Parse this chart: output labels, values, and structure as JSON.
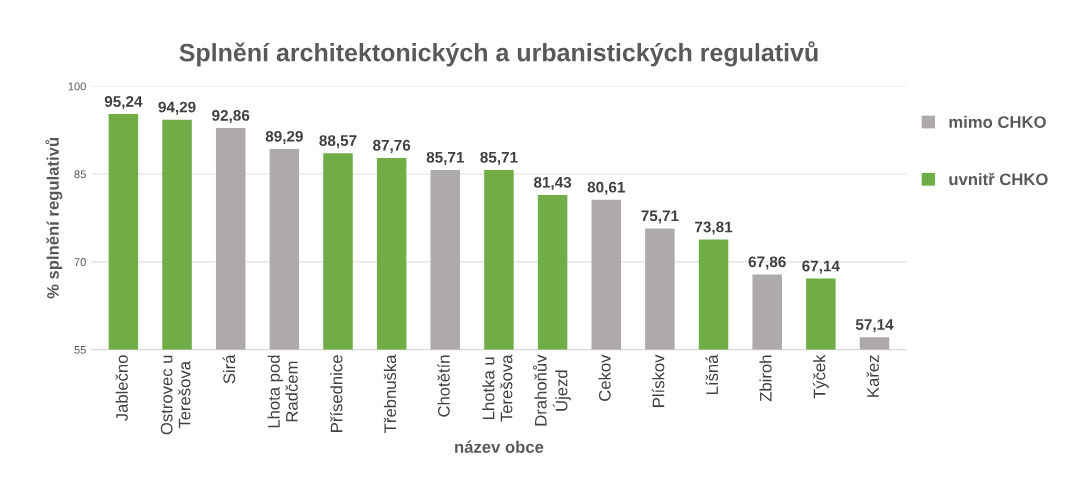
{
  "chart_data": {
    "type": "bar",
    "title": "Splnění architektonických a urbanistických regulativů",
    "xlabel": "název obce",
    "ylabel": "% splnění regulativů",
    "categories": [
      "Jablečno",
      "Ostrovec u\nTerešova",
      "Sirá",
      "Lhota pod\nRadčem",
      "Přísednice",
      "Třebnuška",
      "Chotětín",
      "Lhotka u\nTerešova",
      "Drahoňův\nÚjezd",
      "Cekov",
      "Plískov",
      "Líšná",
      "Zbiroh",
      "Týček",
      "Kařez"
    ],
    "series": [
      {
        "name": "mimo CHKO",
        "color": "#aeaaaa",
        "values": [
          null,
          null,
          92.86,
          89.29,
          null,
          null,
          85.71,
          null,
          null,
          80.61,
          75.71,
          null,
          67.86,
          null,
          57.14
        ],
        "value_labels": [
          null,
          null,
          "92,86",
          "89,29",
          null,
          null,
          "85,71",
          null,
          null,
          "80,61",
          "75,71",
          null,
          "67,86",
          null,
          "57,14"
        ]
      },
      {
        "name": "uvnitř CHKO",
        "color": "#70ad47",
        "values": [
          95.24,
          94.29,
          null,
          null,
          88.57,
          87.76,
          null,
          85.71,
          81.43,
          null,
          null,
          73.81,
          null,
          67.14,
          null
        ],
        "value_labels": [
          "95,24",
          "94,29",
          null,
          null,
          "88,57",
          "87,76",
          null,
          "85,71",
          "81,43",
          null,
          null,
          "73,81",
          null,
          "67,14",
          null
        ]
      }
    ],
    "ylim": [
      55,
      100
    ],
    "yticks": [
      55,
      70,
      85,
      100
    ],
    "grid": "y",
    "legend": "right"
  }
}
